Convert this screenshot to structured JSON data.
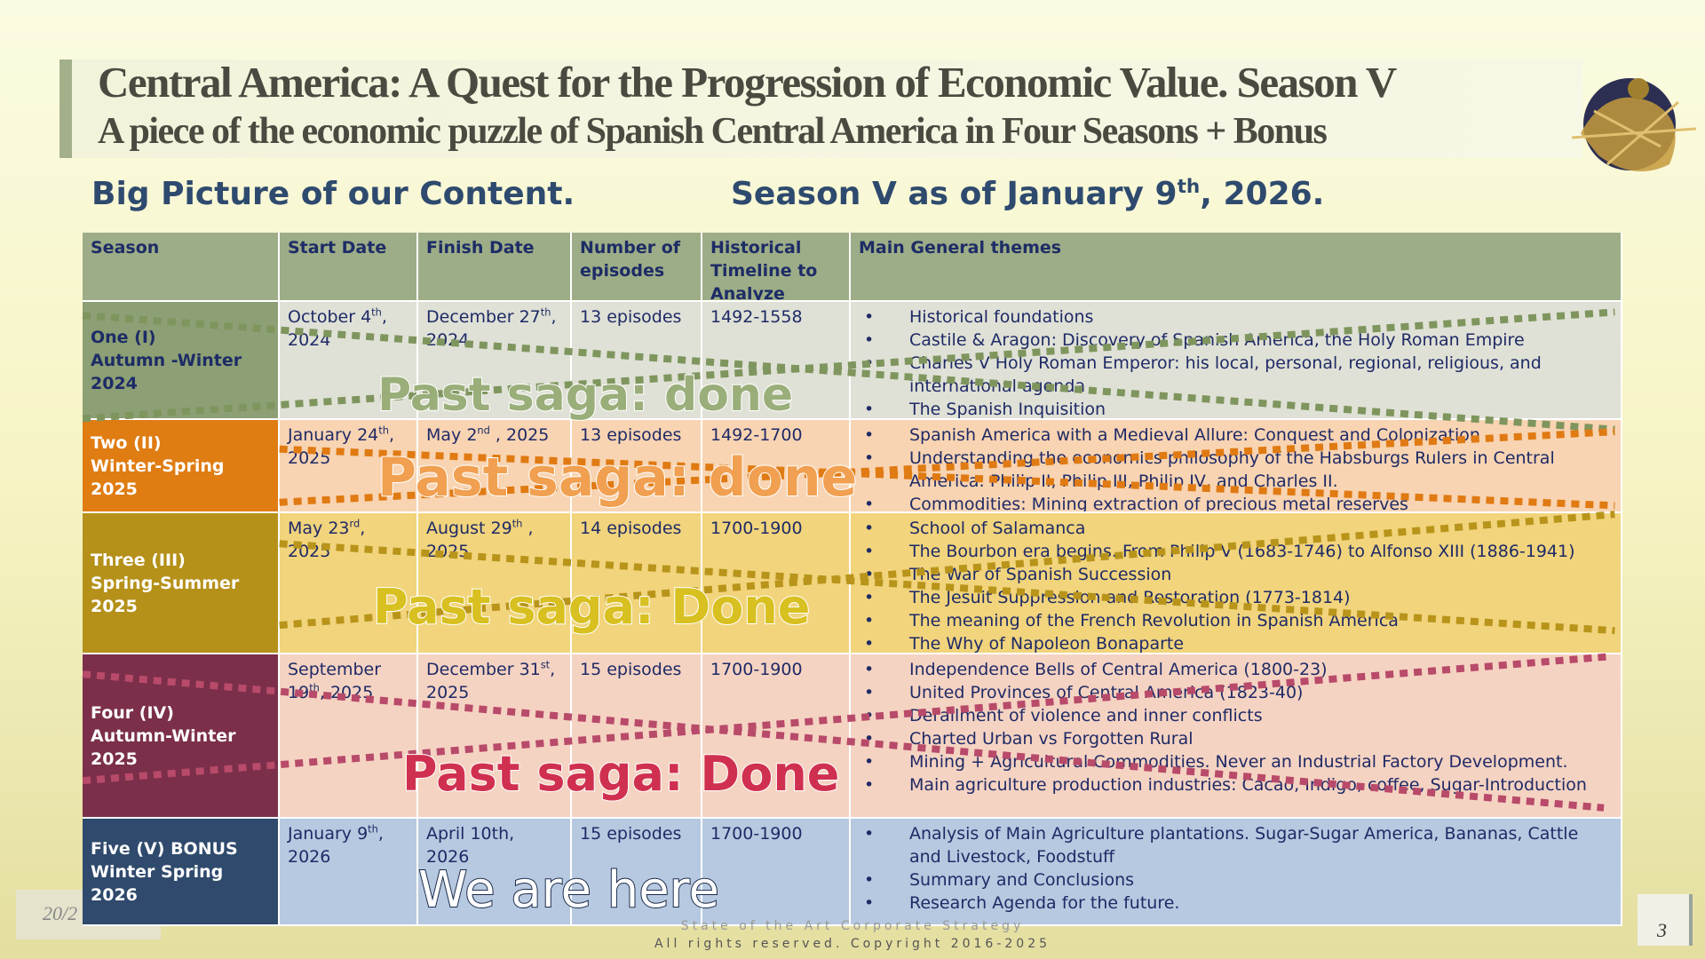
{
  "header": {
    "title": "Central America:  A Quest for the Progression of Economic Value. Season V",
    "subtitle": "A piece of the economic puzzle of Spanish Central America in Four Seasons + Bonus"
  },
  "headings": {
    "left": "Big Picture of our Content.",
    "right": {
      "main": "Season V as of January 9",
      "sup": "th",
      "tail": ", 2026."
    }
  },
  "table": {
    "columns": [
      "Season",
      "Start Date",
      "Finish Date",
      "Number of episodes",
      "Historical Timeline to Analyze",
      "Main General themes"
    ],
    "rows": [
      {
        "season": [
          "One  (I)",
          "Autumn -Winter",
          "2024"
        ],
        "start": {
          "main": "October 4",
          "sup": "th",
          "tail": ", 2024"
        },
        "finish": {
          "main": "December 27",
          "sup": "th",
          "tail": ", 2024"
        },
        "episodes": "13 episodes",
        "timeline": "1492-1558",
        "themes": [
          "Historical foundations",
          "Castile & Aragon: Discovery of Spanish America, the Holy Roman Empire",
          "Charles V Holy Roman Emperor: his local, personal, regional, religious, and international agenda",
          "The Spanish Inquisition"
        ]
      },
      {
        "season": [
          "Two  (II)",
          "Winter-Spring",
          "2025"
        ],
        "start": {
          "main": "January 24",
          "sup": "th",
          "tail": ", 2025"
        },
        "finish": {
          "main": "May 2",
          "sup": "nd",
          "tail": " , 2025"
        },
        "episodes": "13 episodes",
        "timeline": "1492-1700",
        "themes": [
          "Spanish America with a Medieval Allure: Conquest and Colonization",
          "Understanding the economics philosophy of the Habsburgs Rulers in Central America: Philip II, Philip III, Philip IV, and Charles II.",
          "Commodities: Mining extraction of precious metal reserves"
        ]
      },
      {
        "season": [
          "Three  (III)",
          "Spring-Summer",
          "2025"
        ],
        "start": {
          "main": "May 23",
          "sup": "rd",
          "tail": ", 2025"
        },
        "finish": {
          "main": "August 29",
          "sup": "th",
          "tail": " , 2025"
        },
        "episodes": "14 episodes",
        "timeline": "1700-1900",
        "themes": [
          "School of Salamanca",
          "The Bourbon era begins. From Philip V (1683-1746) to Alfonso XIII (1886-1941)",
          "The War of Spanish Succession",
          "The Jesuit Suppression and Restoration (1773-1814)",
          "The meaning of the French Revolution in Spanish America",
          "The Why of Napoleon Bonaparte"
        ]
      },
      {
        "season": [
          "Four (IV)",
          "Autumn-Winter",
          "2025"
        ],
        "start": {
          "main": "September 19",
          "sup": "th",
          "tail": ", 2025"
        },
        "finish": {
          "main": "December 31",
          "sup": "st",
          "tail": ", 2025"
        },
        "episodes": "15 episodes",
        "timeline": "1700-1900",
        "themes": [
          "Independence Bells of Central America (1800-23)",
          "United Provinces of Central America (1823-40)",
          "Derailment of violence and inner conflicts",
          "Charted Urban vs Forgotten Rural",
          "Mining + Agricultural Commodities. Never an Industrial Factory Development.",
          "Main agriculture production industries: Cacao, Indigo, coffee, Sugar-Introduction"
        ]
      },
      {
        "season": [
          "Five (V) BONUS",
          "Winter Spring 2026"
        ],
        "start": {
          "main": "January 9",
          "sup": "th",
          "tail": ", 2026"
        },
        "finish": {
          "main": "April 10th, 2026"
        },
        "episodes": "15 episodes",
        "timeline": "1700-1900",
        "themes": [
          "Analysis of Main Agriculture plantations. Sugar-Sugar America, Bananas, Cattle and Livestock, Foodstuff",
          "Summary and Conclusions",
          "Research Agenda for the future."
        ]
      }
    ]
  },
  "overlays": [
    "Past saga: done",
    "Past saga: done",
    "Past saga: Done",
    "Past saga: Done",
    "We are here"
  ],
  "footer": {
    "line1": "State of the Art Corporate Strategy",
    "line2": "All rights reserved. Copyright 2016-2025",
    "date": "20/2",
    "page_number": "3"
  }
}
